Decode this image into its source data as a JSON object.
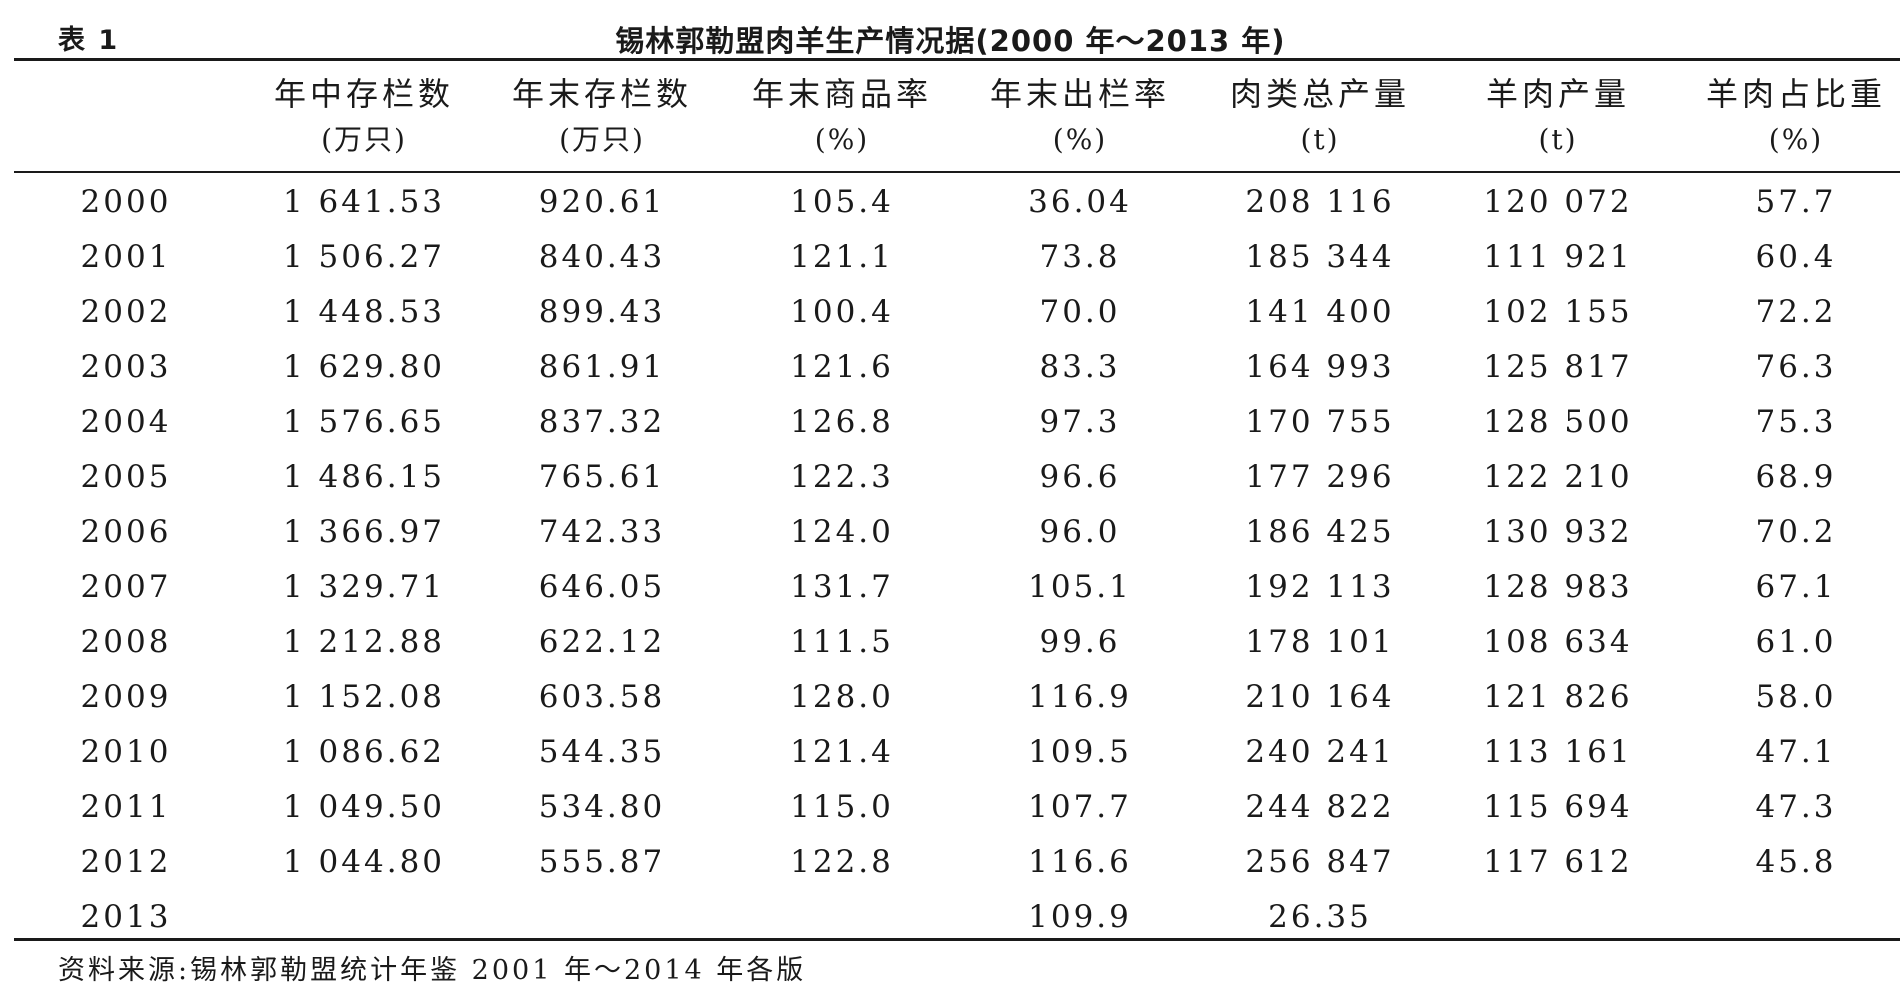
{
  "caption": {
    "label": "表 1",
    "title": "锡林郭勒盟肉羊生产情况据(2000 年～2013 年)"
  },
  "headers": [
    {
      "name": "",
      "unit": ""
    },
    {
      "name": "年中存栏数",
      "unit": "(万只)"
    },
    {
      "name": "年末存栏数",
      "unit": "(万只)"
    },
    {
      "name": "年末商品率",
      "unit": "(%)"
    },
    {
      "name": "年末出栏率",
      "unit": "(%)"
    },
    {
      "name": "肉类总产量",
      "unit": "(t)"
    },
    {
      "name": "羊肉产量",
      "unit": "(t)"
    },
    {
      "name": "羊肉占比重",
      "unit": "(%)"
    }
  ],
  "rows": [
    [
      "2000",
      "1 641.53",
      "920.61",
      "105.4",
      "36.04",
      "208 116",
      "120 072",
      "57.7"
    ],
    [
      "2001",
      "1 506.27",
      "840.43",
      "121.1",
      "73.8",
      "185 344",
      "111 921",
      "60.4"
    ],
    [
      "2002",
      "1 448.53",
      "899.43",
      "100.4",
      "70.0",
      "141 400",
      "102 155",
      "72.2"
    ],
    [
      "2003",
      "1 629.80",
      "861.91",
      "121.6",
      "83.3",
      "164 993",
      "125 817",
      "76.3"
    ],
    [
      "2004",
      "1 576.65",
      "837.32",
      "126.8",
      "97.3",
      "170 755",
      "128 500",
      "75.3"
    ],
    [
      "2005",
      "1 486.15",
      "765.61",
      "122.3",
      "96.6",
      "177 296",
      "122 210",
      "68.9"
    ],
    [
      "2006",
      "1 366.97",
      "742.33",
      "124.0",
      "96.0",
      "186 425",
      "130 932",
      "70.2"
    ],
    [
      "2007",
      "1 329.71",
      "646.05",
      "131.7",
      "105.1",
      "192 113",
      "128 983",
      "67.1"
    ],
    [
      "2008",
      "1 212.88",
      "622.12",
      "111.5",
      "99.6",
      "178 101",
      "108 634",
      "61.0"
    ],
    [
      "2009",
      "1 152.08",
      "603.58",
      "128.0",
      "116.9",
      "210 164",
      "121 826",
      "58.0"
    ],
    [
      "2010",
      "1 086.62",
      "544.35",
      "121.4",
      "109.5",
      "240 241",
      "113 161",
      "47.1"
    ],
    [
      "2011",
      "1 049.50",
      "534.80",
      "115.0",
      "107.7",
      "244 822",
      "115 694",
      "47.3"
    ],
    [
      "2012",
      "1 044.80",
      "555.87",
      "122.8",
      "116.6",
      "256 847",
      "117 612",
      "45.8"
    ],
    [
      "2013",
      "",
      "",
      "",
      "109.9",
      "26.35",
      "",
      ""
    ]
  ],
  "source": "资料来源:锡林郭勒盟统计年鉴 2001 年～2014 年各版"
}
